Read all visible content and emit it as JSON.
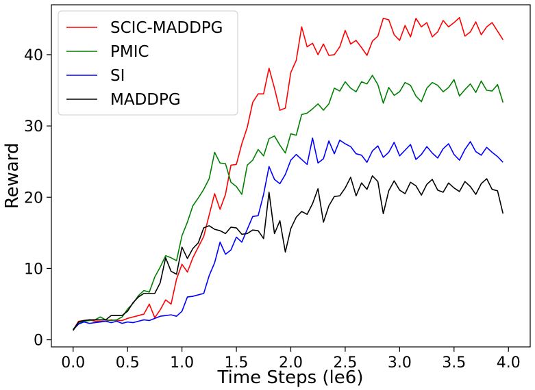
{
  "chart_data": {
    "type": "line",
    "title": "",
    "xlabel": "Time Steps (le6)",
    "ylabel": "Reward",
    "xlim": [
      -0.2,
      4.2
    ],
    "ylim": [
      -1,
      47
    ],
    "xticks": [
      0.0,
      0.5,
      1.0,
      1.5,
      2.0,
      2.5,
      3.0,
      3.5,
      4.0
    ],
    "xtick_labels": [
      "0.0",
      "0.5",
      "1.0",
      "1.5",
      "2.0",
      "2.5",
      "3.0",
      "3.5",
      "4.0"
    ],
    "yticks": [
      0,
      10,
      20,
      30,
      40
    ],
    "ytick_labels": [
      "0",
      "10",
      "20",
      "30",
      "40"
    ],
    "grid": false,
    "legend_position": "top-left",
    "x": [
      0.0,
      0.05,
      0.1,
      0.15,
      0.2,
      0.25,
      0.3,
      0.35,
      0.4,
      0.45,
      0.5,
      0.55,
      0.6,
      0.65,
      0.7,
      0.75,
      0.8,
      0.85,
      0.9,
      0.95,
      1.0,
      1.05,
      1.1,
      1.15,
      1.2,
      1.25,
      1.3,
      1.35,
      1.4,
      1.45,
      1.5,
      1.55,
      1.6,
      1.65,
      1.7,
      1.75,
      1.8,
      1.85,
      1.9,
      1.95,
      2.0,
      2.05,
      2.1,
      2.15,
      2.2,
      2.25,
      2.3,
      2.35,
      2.4,
      2.45,
      2.5,
      2.55,
      2.6,
      2.65,
      2.7,
      2.75,
      2.8,
      2.85,
      2.9,
      2.95,
      3.0,
      3.05,
      3.1,
      3.15,
      3.2,
      3.25,
      3.3,
      3.35,
      3.4,
      3.45,
      3.5,
      3.55,
      3.6,
      3.65,
      3.7,
      3.75,
      3.8,
      3.85,
      3.9,
      3.95
    ],
    "series": [
      {
        "name": "SCIC-MADDPG",
        "color": "#ff0000",
        "values": [
          1.4,
          2.6,
          2.7,
          2.8,
          2.6,
          2.6,
          2.6,
          2.8,
          2.7,
          2.7,
          3.0,
          3.2,
          3.4,
          3.6,
          5.0,
          3.1,
          4.2,
          5.6,
          5.0,
          8.5,
          10.6,
          9.5,
          11.5,
          13.0,
          14.5,
          17.5,
          20.5,
          18.3,
          20.4,
          24.5,
          24.6,
          27.5,
          29.8,
          33.3,
          34.5,
          34.5,
          38.1,
          35.3,
          32.2,
          32.5,
          37.5,
          39.2,
          43.9,
          41.1,
          41.6,
          40.0,
          41.5,
          39.9,
          40.0,
          41.1,
          43.4,
          41.5,
          42.0,
          41.0,
          39.9,
          41.9,
          42.6,
          45.1,
          44.9,
          42.8,
          42.0,
          44.1,
          42.5,
          45.1,
          43.9,
          44.5,
          42.5,
          43.2,
          44.8,
          43.9,
          44.5,
          45.2,
          42.6,
          43.2,
          44.6,
          42.8,
          43.9,
          44.5,
          43.3,
          42.1
        ]
      },
      {
        "name": "PMIC",
        "color": "#008000",
        "values": [
          1.5,
          2.3,
          2.6,
          2.7,
          2.8,
          3.2,
          2.8,
          2.7,
          2.8,
          3.2,
          4.3,
          5.1,
          6.2,
          6.9,
          6.7,
          8.8,
          10.2,
          11.8,
          11.5,
          11.1,
          14.6,
          16.5,
          18.8,
          19.9,
          21.1,
          22.6,
          26.3,
          24.8,
          24.7,
          22.1,
          21.5,
          20.4,
          24.5,
          25.2,
          26.7,
          25.8,
          28.2,
          28.6,
          27.3,
          26.2,
          28.9,
          28.7,
          31.6,
          31.8,
          32.4,
          33.1,
          32.2,
          33.1,
          35.3,
          34.9,
          36.2,
          35.3,
          34.8,
          36.2,
          35.9,
          37.1,
          35.8,
          33.2,
          35.4,
          34.3,
          34.8,
          36.1,
          35.7,
          34.2,
          33.4,
          35.3,
          36.1,
          35.7,
          34.8,
          35.4,
          36.5,
          34.2,
          35.1,
          35.9,
          34.7,
          36.3,
          35.0,
          34.9,
          35.8,
          33.3
        ]
      },
      {
        "name": "SI",
        "color": "#0000ff",
        "values": [
          1.4,
          2.2,
          2.5,
          2.3,
          2.4,
          2.5,
          2.6,
          2.4,
          2.6,
          2.3,
          2.5,
          2.4,
          2.6,
          2.8,
          2.7,
          3.0,
          3.3,
          3.4,
          3.5,
          3.3,
          4.0,
          6.0,
          6.1,
          6.3,
          6.5,
          9.0,
          10.8,
          13.7,
          12.0,
          12.6,
          14.4,
          13.7,
          15.5,
          17.3,
          17.4,
          20.4,
          24.3,
          22.5,
          21.9,
          23.2,
          25.2,
          26.0,
          25.3,
          24.6,
          28.3,
          24.8,
          25.4,
          27.9,
          26.1,
          28.0,
          27.5,
          27.1,
          26.1,
          25.9,
          24.9,
          26.5,
          27.2,
          25.6,
          26.3,
          27.7,
          25.8,
          26.6,
          27.4,
          25.3,
          26.0,
          27.1,
          26.2,
          25.5,
          26.8,
          27.5,
          26.0,
          25.2,
          26.7,
          27.8,
          26.4,
          25.9,
          27.0,
          26.3,
          25.7,
          24.9
        ]
      },
      {
        "name": "MADDPG",
        "color": "#000000",
        "values": [
          1.3,
          2.5,
          2.7,
          2.8,
          2.8,
          2.8,
          2.8,
          3.4,
          3.4,
          3.4,
          4.0,
          5.2,
          6.0,
          6.5,
          6.5,
          6.5,
          8.0,
          11.5,
          9.6,
          9.2,
          13.0,
          11.4,
          12.8,
          13.6,
          15.7,
          16.0,
          15.5,
          15.3,
          14.9,
          15.8,
          15.7,
          14.8,
          14.9,
          15.4,
          15.3,
          14.2,
          20.7,
          14.9,
          16.7,
          12.3,
          15.6,
          17.2,
          18.0,
          17.6,
          19.1,
          21.2,
          16.5,
          18.8,
          20.1,
          20.2,
          21.3,
          22.8,
          20.2,
          22.0,
          21.1,
          23.0,
          22.2,
          17.7,
          20.9,
          22.3,
          21.0,
          20.5,
          22.1,
          21.6,
          20.3,
          21.8,
          22.5,
          21.0,
          20.7,
          22.0,
          21.3,
          20.8,
          22.2,
          21.5,
          20.4,
          21.9,
          22.6,
          21.1,
          20.9,
          17.7
        ]
      }
    ]
  }
}
